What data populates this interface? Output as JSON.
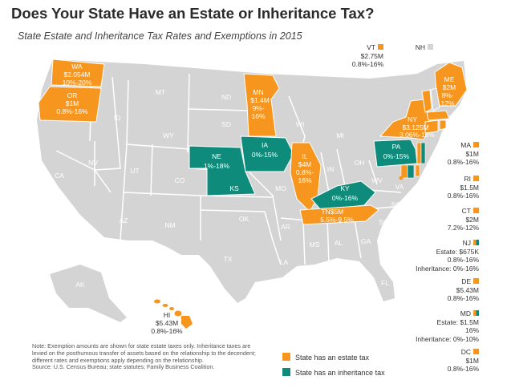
{
  "title": "Does Your State Have an Estate or Inheritance Tax?",
  "subtitle": "State Estate and Inheritance Tax Rates and Exemptions in 2015",
  "colors": {
    "estate": "#f7961e",
    "inheritance": "#0e8b7b",
    "none": "#d4d4d4",
    "border": "#ffffff"
  },
  "states": {
    "WA": {
      "abbr": "WA",
      "line1": "$2.054M",
      "line2": "10%-20%"
    },
    "OR": {
      "abbr": "OR",
      "line1": "$1M",
      "line2": "0.8%-16%"
    },
    "MN": {
      "abbr": "MN",
      "line1": "$1.4M",
      "line2": "9%-",
      "line3": "16%"
    },
    "IA": {
      "abbr": "IA",
      "line1": "0%-15%"
    },
    "NE": {
      "abbr": "NE",
      "line1": "1%-18%"
    },
    "IL": {
      "abbr": "IL",
      "line1": "$4M",
      "line2": "0.8%-",
      "line3": "16%"
    },
    "KY": {
      "abbr": "KY",
      "line1": "0%-16%"
    },
    "TN": {
      "abbr": "TN",
      "line1": "$5M",
      "line2": "5.5%-9.5%"
    },
    "PA": {
      "abbr": "PA",
      "line1": "0%-15%"
    },
    "NY": {
      "abbr": "NY",
      "line1": "$3.125M",
      "line2": "3.06%-16%"
    },
    "ME": {
      "abbr": "ME",
      "line1": "$2M",
      "line2": "8%-",
      "line3": "12%"
    },
    "HI": {
      "abbr": "HI",
      "line1": "$5.43M",
      "line2": "0.8%-16%"
    },
    "VT": {
      "abbr": "VT",
      "line1": "$2.75M",
      "line2": "0.8%-16%"
    },
    "NH": {
      "abbr": "NH"
    }
  },
  "plain_states": [
    "MT",
    "ID",
    "WY",
    "ND",
    "SD",
    "NV",
    "UT",
    "CO",
    "KS",
    "MO",
    "WI",
    "MI",
    "CA",
    "AZ",
    "NM",
    "OK",
    "TX",
    "AR",
    "LA",
    "MS",
    "AL",
    "GA",
    "SC",
    "NC",
    "OH",
    "IN",
    "WV",
    "VA",
    "FL",
    "AK"
  ],
  "side_panel": [
    {
      "abbr": "MA",
      "lines": [
        "$1M",
        "0.8%-16%"
      ],
      "type": "estate"
    },
    {
      "abbr": "RI",
      "lines": [
        "$1.5M",
        "0.8%-16%"
      ],
      "type": "estate"
    },
    {
      "abbr": "CT",
      "lines": [
        "$2M",
        "7.2%-12%"
      ],
      "type": "estate"
    },
    {
      "abbr": "NJ",
      "lines": [
        "Estate: $675K",
        "0.8%-16%",
        "Inheritance: 0%-16%"
      ],
      "type": "both"
    },
    {
      "abbr": "DE",
      "lines": [
        "$5.43M",
        "0.8%-16%"
      ],
      "type": "estate"
    },
    {
      "abbr": "MD",
      "lines": [
        "Estate: $1.5M",
        "16%",
        "Inheritance: 0%-10%"
      ],
      "type": "both"
    },
    {
      "abbr": "DC",
      "lines": [
        "$1M",
        "0.8%-16%"
      ],
      "type": "estate"
    }
  ],
  "legend": [
    {
      "label": "State has an estate tax",
      "color": "#f7961e"
    },
    {
      "label": "State has an inheritance tax",
      "color": "#0e8b7b"
    }
  ],
  "note": "Note: Exemption amounts are shown for state estate taxes only. Inheritance taxes are levied on the posthumous transfer of assets based on the relationship to the decendent; different rates and exemptions apply depending on the relationship.",
  "source": "Source: U.S. Census Bureau; state statutes; Family Business Coalition."
}
